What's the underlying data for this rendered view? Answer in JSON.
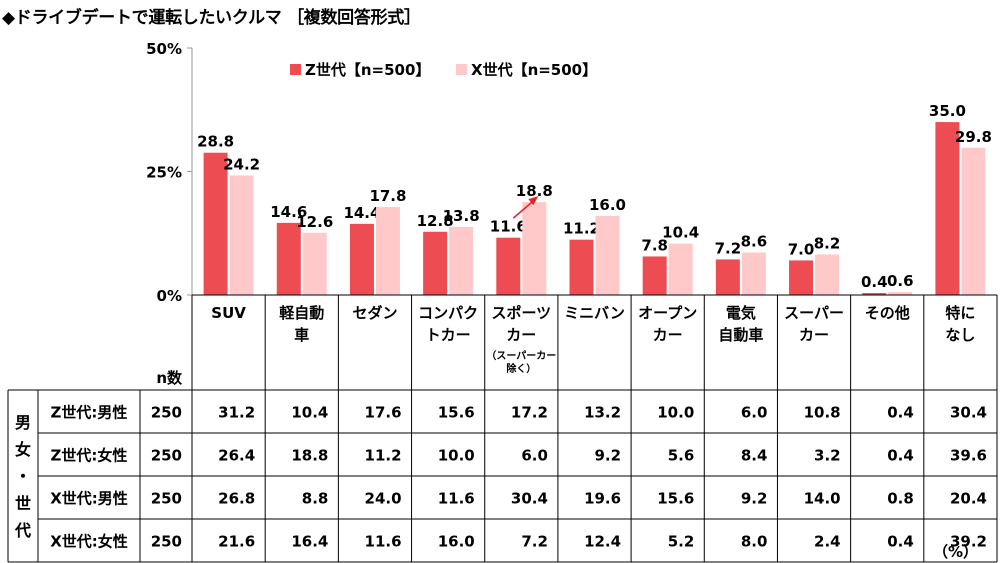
{
  "title": "◆ドライブデートで運転したいクルマ ［複数回答形式］",
  "unit_note": "（%）",
  "colors": {
    "z": "#EC4C52",
    "x": "#FFC9CA",
    "arrow": "#E8202A",
    "axis": "#999999",
    "grid": "#000000"
  },
  "chart_data": {
    "type": "bar",
    "categories": [
      "SUV",
      "軽自動車",
      "セダン",
      "コンパクトカー",
      "スポーツカー",
      "ミニバン",
      "オープンカー",
      "電気自動車",
      "スーパーカー",
      "その他",
      "特になし"
    ],
    "category_lines": [
      [
        "SUV"
      ],
      [
        "軽自動",
        "車"
      ],
      [
        "セダン"
      ],
      [
        "コンパク",
        "トカー"
      ],
      [
        "スポーツ",
        "カー"
      ],
      [
        "ミニバン"
      ],
      [
        "オープン",
        "カー"
      ],
      [
        "電気",
        "自動車"
      ],
      [
        "スーパー",
        "カー"
      ],
      [
        "その他"
      ],
      [
        "特に",
        "なし"
      ]
    ],
    "category_notes": [
      "",
      "",
      "",
      "",
      "（スーパーカー除く）",
      "",
      "",
      "",
      "",
      "",
      ""
    ],
    "category_note_lines": [
      [],
      [],
      [],
      [],
      [
        "（スーパーカー",
        "除く）"
      ],
      [],
      [],
      [],
      [],
      [],
      []
    ],
    "series": [
      {
        "name": "Z世代【n=500】",
        "values": [
          28.8,
          14.6,
          14.4,
          12.8,
          11.6,
          11.2,
          7.8,
          7.2,
          7.0,
          0.4,
          35.0
        ]
      },
      {
        "name": "X世代【n=500】",
        "values": [
          24.2,
          12.6,
          17.8,
          13.8,
          18.8,
          16.0,
          10.4,
          8.6,
          8.2,
          0.6,
          29.8
        ]
      }
    ],
    "ylim": [
      0,
      50
    ],
    "yticks": [
      0,
      25,
      50
    ],
    "ytick_labels": [
      "0%",
      "25%",
      "50%"
    ],
    "legend_position": "top-center",
    "annotation": {
      "type": "arrow",
      "category": "スポーツカー",
      "series": "X世代【n=500】"
    },
    "table": {
      "row_group_label": "男女・世代",
      "n_header": "n数",
      "rows": [
        {
          "label": "Z世代:男性",
          "n": "250",
          "values": [
            "31.2",
            "10.4",
            "17.6",
            "15.6",
            "17.2",
            "13.2",
            "10.0",
            "6.0",
            "10.8",
            "0.4",
            "30.4"
          ]
        },
        {
          "label": "Z世代:女性",
          "n": "250",
          "values": [
            "26.4",
            "18.8",
            "11.2",
            "10.0",
            "6.0",
            "9.2",
            "5.6",
            "8.4",
            "3.2",
            "0.4",
            "39.6"
          ]
        },
        {
          "label": "X世代:男性",
          "n": "250",
          "values": [
            "26.8",
            "8.8",
            "24.0",
            "11.6",
            "30.4",
            "19.6",
            "15.6",
            "9.2",
            "14.0",
            "0.8",
            "20.4"
          ]
        },
        {
          "label": "X世代:女性",
          "n": "250",
          "values": [
            "21.6",
            "16.4",
            "11.6",
            "16.0",
            "7.2",
            "12.4",
            "5.2",
            "8.0",
            "2.4",
            "0.4",
            "39.2"
          ]
        }
      ]
    }
  }
}
